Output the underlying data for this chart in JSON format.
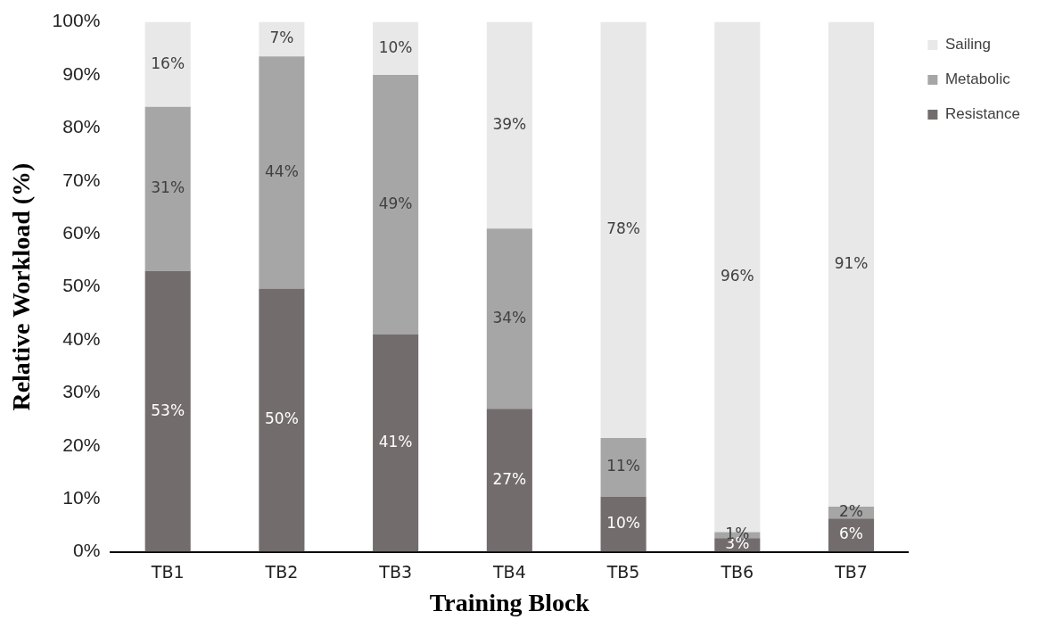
{
  "chart_data": {
    "type": "bar",
    "stacked": true,
    "xlabel": "Training Block",
    "ylabel": "Relative Workload (%)",
    "categories": [
      "TB1",
      "TB2",
      "TB3",
      "TB4",
      "TB5",
      "TB6",
      "TB7"
    ],
    "series": [
      {
        "name": "Resistance",
        "color": "#726c6c",
        "values": [
          53,
          49.7,
          41,
          27,
          10.4,
          2.6,
          6.3
        ],
        "value_labels": [
          "53%",
          "50%",
          "41%",
          "27%",
          "10%",
          "3%",
          "6%"
        ]
      },
      {
        "name": "Metabolic",
        "color": "#a6a6a6",
        "values": [
          31,
          43.8,
          49,
          34,
          11.1,
          1.1,
          2.2
        ],
        "value_labels": [
          "31%",
          "44%",
          "49%",
          "34%",
          "11%",
          "1%",
          "2%"
        ]
      },
      {
        "name": "Sailing",
        "color": "#e8e8e8",
        "values": [
          16,
          6.5,
          10,
          39,
          78.5,
          96.3,
          91.5
        ],
        "value_labels": [
          "16%",
          "7%",
          "10%",
          "39%",
          "78%",
          "96%",
          "91%"
        ]
      }
    ],
    "ylim": [
      0,
      100
    ],
    "yticks": [
      {
        "value": 0,
        "label": "0%"
      },
      {
        "value": 10,
        "label": "10%"
      },
      {
        "value": 20,
        "label": "20%"
      },
      {
        "value": 30,
        "label": "30%"
      },
      {
        "value": 40,
        "label": "40%"
      },
      {
        "value": 50,
        "label": "50%"
      },
      {
        "value": 60,
        "label": "60%"
      },
      {
        "value": 70,
        "label": "70%"
      },
      {
        "value": 80,
        "label": "80%"
      },
      {
        "value": 90,
        "label": "90%"
      },
      {
        "value": 100,
        "label": "100%"
      }
    ],
    "grid": false,
    "legend": "right"
  }
}
